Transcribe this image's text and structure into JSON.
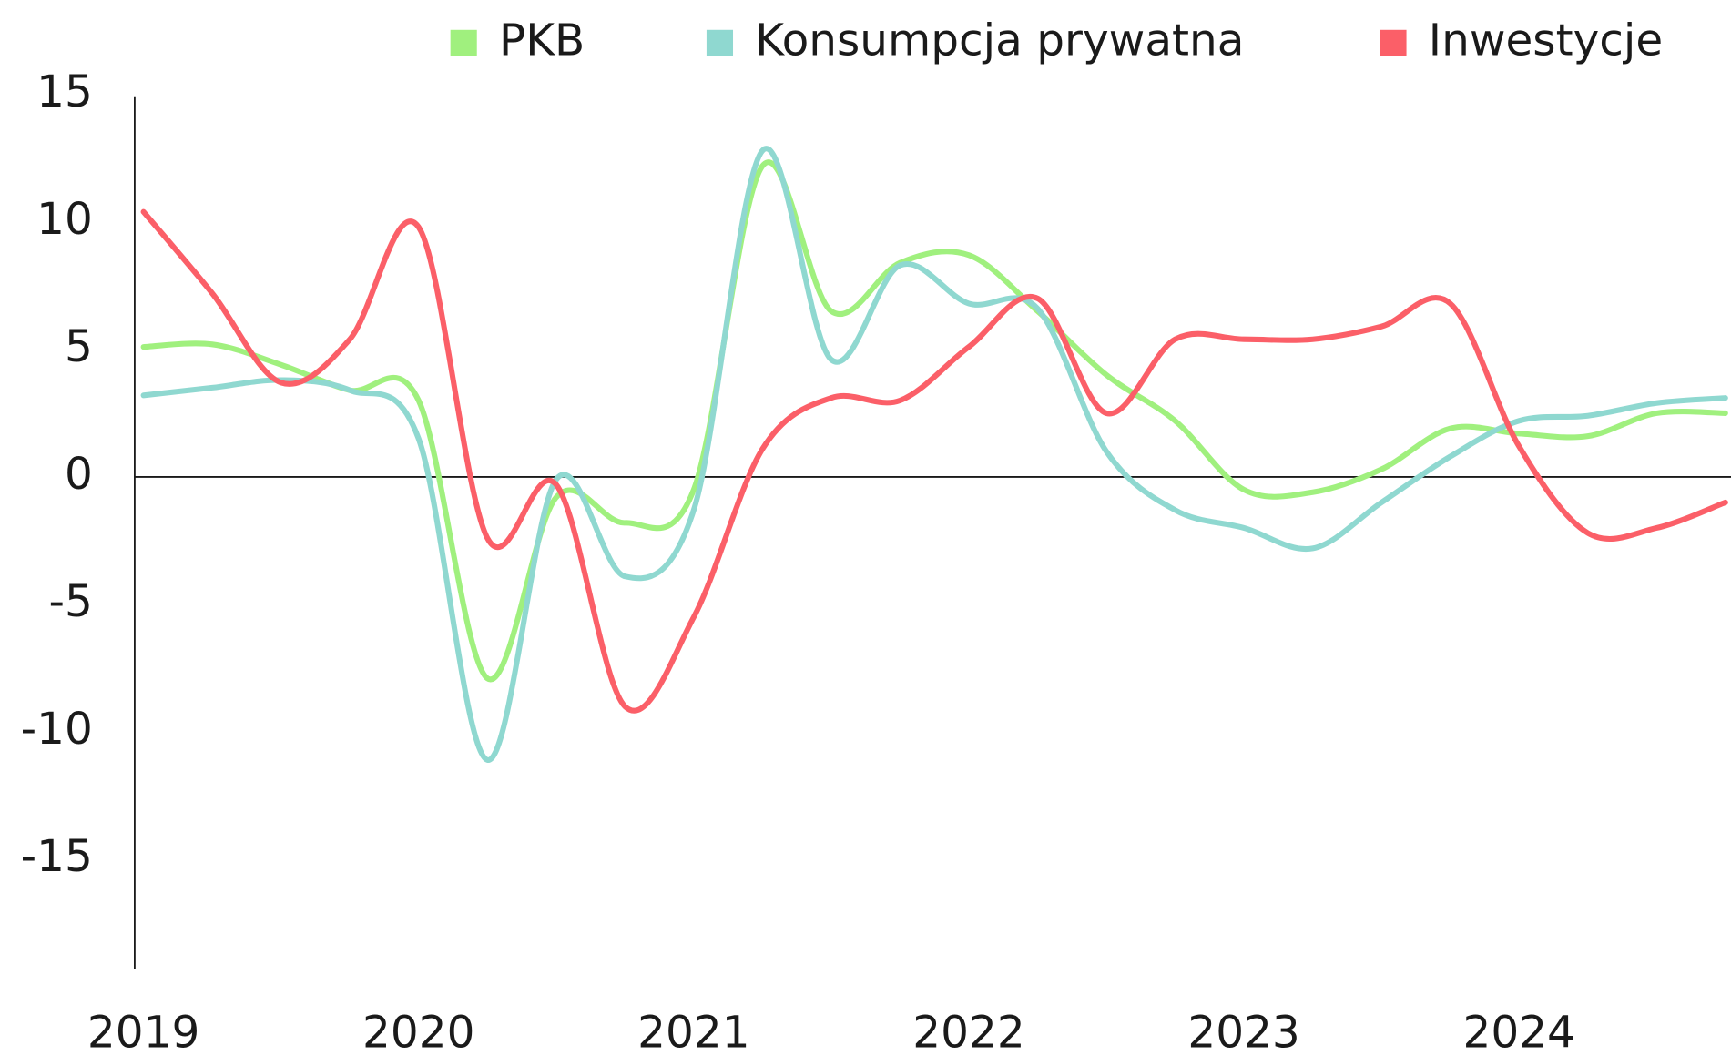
{
  "chart_data": {
    "type": "line",
    "categories": [
      "2019",
      null,
      null,
      null,
      "2020",
      null,
      null,
      null,
      "2021",
      null,
      null,
      null,
      "2022",
      null,
      null,
      null,
      "2023",
      null,
      null,
      null,
      "2024",
      null,
      null,
      null
    ],
    "series": [
      {
        "name": "PKB",
        "color": "#a0f07e",
        "values": [
          5.1,
          5.2,
          4.4,
          3.4,
          3.0,
          -7.9,
          -0.8,
          -1.8,
          -0.5,
          12.2,
          6.5,
          8.4,
          8.7,
          6.5,
          4.0,
          2.2,
          -0.5,
          -0.6,
          0.3,
          1.9,
          1.7,
          1.6,
          2.5,
          2.5
        ]
      },
      {
        "name": "Konsumpcja prywatna",
        "color": "#8fd8d0",
        "values": [
          3.2,
          3.5,
          3.8,
          3.4,
          1.5,
          -11.1,
          -0.1,
          -3.9,
          -1.3,
          12.8,
          4.6,
          8.3,
          6.8,
          6.6,
          1.0,
          -1.3,
          -2.0,
          -2.8,
          -1.0,
          0.8,
          2.2,
          2.4,
          2.9,
          3.1
        ]
      },
      {
        "name": "Inwestycje",
        "color": "#fb5f68",
        "values": [
          10.4,
          7.2,
          3.7,
          5.4,
          9.8,
          -2.4,
          -0.3,
          -9.0,
          -5.5,
          1.1,
          3.1,
          3.0,
          5.1,
          7.0,
          2.5,
          5.4,
          5.4,
          5.4,
          5.9,
          6.8,
          1.2,
          -2.2,
          -2.0,
          -1.0
        ]
      }
    ],
    "ylim": [
      -19.3,
      15
    ],
    "yticks": [
      15,
      10,
      5,
      0,
      -5,
      -10,
      -15
    ],
    "legend": "top"
  }
}
